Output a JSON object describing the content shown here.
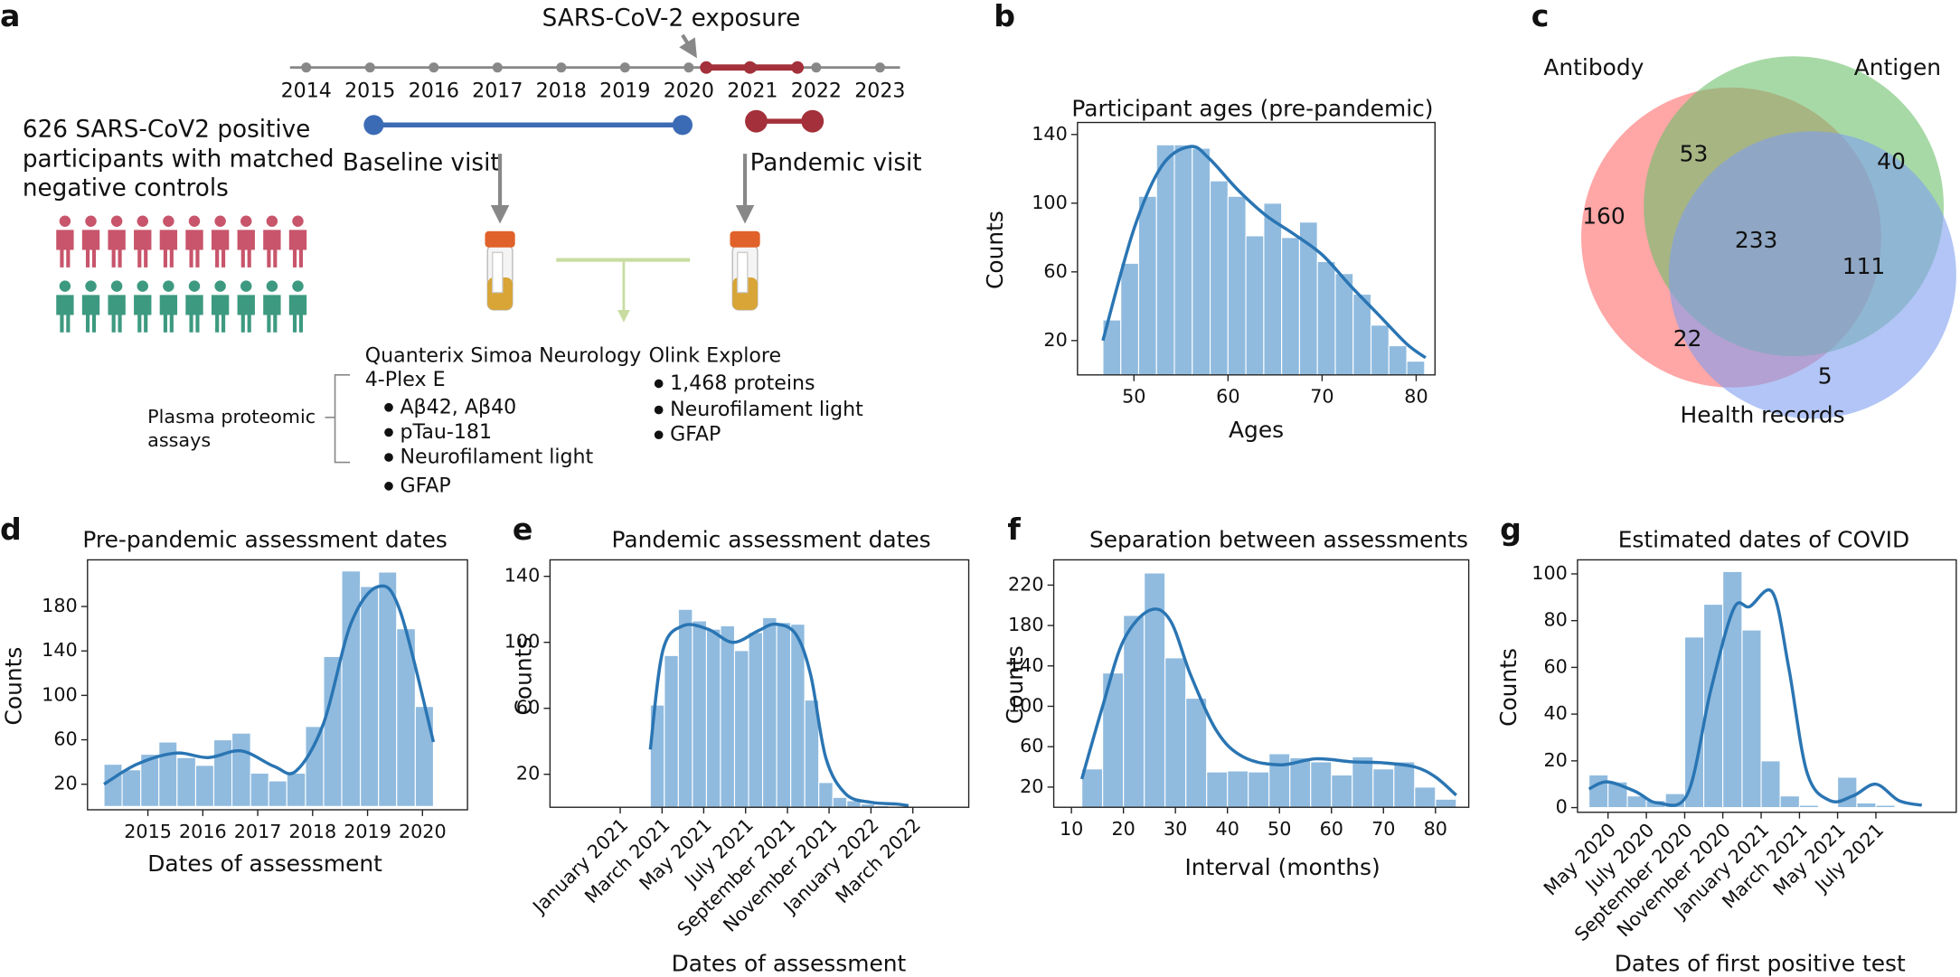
{
  "panel_labels": [
    "a",
    "b",
    "c",
    "d",
    "e",
    "f",
    "g"
  ],
  "diagram": {
    "exposure_label": "SARS-CoV-2 exposure",
    "years": [
      "2014",
      "2015",
      "2016",
      "2017",
      "2018",
      "2019",
      "2020",
      "2021",
      "2022",
      "2023"
    ],
    "cohort_text": [
      "626 SARS-CoV2 positive",
      "participants with matched",
      "negative controls"
    ],
    "baseline": "Baseline visit",
    "pandemic": "Pandemic visit",
    "assays_label": [
      "Plasma proteomic",
      "assays"
    ],
    "quanterix": {
      "title": [
        "Quanterix Simoa Neurology",
        "4-Plex E"
      ],
      "items": [
        "Aβ42, Aβ40",
        "pTau-181",
        "Neurofilament light",
        "GFAP"
      ]
    },
    "olink": {
      "title": "Olink Explore",
      "items": [
        "1,468 proteins",
        "Neurofilament light",
        "GFAP"
      ]
    }
  },
  "venn": {
    "sets": [
      "Antibody",
      "Antigen",
      "Health records"
    ],
    "colors": [
      "#ff6b6b",
      "#6cc06c",
      "#7f9ff0"
    ],
    "regions": [
      160,
      53,
      40,
      233,
      111,
      22,
      5
    ]
  },
  "chart_data": [
    {
      "type": "histogram",
      "title": "Participant ages (pre-pandemic)",
      "xlabel": "Ages",
      "ylabel": "Counts",
      "color": "#90bbdf",
      "line_color": "#2a75b3",
      "bins": [
        46.7,
        48.6,
        50.5,
        52.4,
        54.3,
        56.2,
        58.1,
        60.0,
        61.9,
        63.8,
        65.7,
        67.6,
        69.5,
        71.4,
        73.3,
        75.2,
        77.1,
        79.0,
        80.9
      ],
      "counts": [
        32,
        65,
        104,
        134,
        134,
        132,
        113,
        104,
        81,
        100,
        80,
        89,
        66,
        59,
        47,
        29,
        17,
        8
      ],
      "kde": {
        "x": [
          46.7,
          50,
          53,
          56,
          58,
          61,
          64,
          67,
          70,
          73,
          76,
          79,
          81
        ],
        "values": [
          20,
          85,
          122,
          133,
          126,
          108,
          93,
          82,
          70,
          52,
          35,
          18,
          10
        ]
      },
      "xlim": [
        44,
        82
      ],
      "ylim": [
        0,
        147
      ],
      "xticks": [
        50,
        60,
        70,
        80
      ],
      "yticks": [
        20,
        60,
        100,
        140
      ]
    },
    {
      "type": "histogram",
      "title": "Pre-pandemic assessment dates",
      "xlabel": "Dates of assessment",
      "ylabel": "Counts",
      "color": "#90bbdf",
      "line_color": "#2a75b3",
      "bins": [
        2014.2,
        2014.53,
        2014.87,
        2015.2,
        2015.53,
        2015.87,
        2016.2,
        2016.53,
        2016.87,
        2017.2,
        2017.53,
        2017.87,
        2018.2,
        2018.53,
        2018.87,
        2019.2,
        2019.53,
        2019.87,
        2020.2
      ],
      "counts": [
        38,
        33,
        47,
        58,
        44,
        37,
        60,
        66,
        30,
        23,
        30,
        72,
        135,
        212,
        198,
        211,
        160,
        90
      ],
      "kde": {
        "x": [
          2014.2,
          2014.8,
          2015.5,
          2016.1,
          2016.7,
          2017.3,
          2017.7,
          2018.2,
          2018.7,
          2019.2,
          2019.6,
          2020.2
        ],
        "values": [
          20,
          38,
          48,
          44,
          50,
          36,
          32,
          75,
          165,
          198,
          175,
          58
        ]
      },
      "xlim": [
        2013.9,
        2020.82
      ],
      "ylim": [
        -3,
        222
      ],
      "xticks": [
        2015,
        2016,
        2017,
        2018,
        2019,
        2020
      ],
      "yticks": [
        20,
        60,
        100,
        140,
        180
      ]
    },
    {
      "type": "histogram",
      "title": "Pandemic assessment dates",
      "xlabel": "Dates of assessment",
      "ylabel": "Counts",
      "color": "#90bbdf",
      "line_color": "#2a75b3",
      "bins": [
        2021.12,
        2021.176,
        2021.232,
        2021.288,
        2021.344,
        2021.4,
        2021.456,
        2021.512,
        2021.568,
        2021.624,
        2021.68,
        2021.736,
        2021.792,
        2021.848,
        2021.904,
        2021.96,
        2022.016,
        2022.072
      ],
      "counts": [
        62,
        92,
        120,
        113,
        108,
        110,
        95,
        106,
        115,
        112,
        111,
        65,
        15,
        6,
        4,
        2,
        1
      ],
      "kde": {
        "x": [
          2021.12,
          2021.17,
          2021.25,
          2021.35,
          2021.45,
          2021.55,
          2021.62,
          2021.7,
          2021.76,
          2021.82,
          2021.9,
          2022.0,
          2022.1,
          2022.15
        ],
        "values": [
          35,
          95,
          110,
          108,
          100,
          107,
          111,
          105,
          80,
          30,
          8,
          3,
          2,
          1
        ]
      },
      "xlim": [
        2020.72,
        2022.39
      ],
      "ylim": [
        0,
        150
      ],
      "xticks": [
        {
          "value": 2021.0,
          "label": "January 2021"
        },
        {
          "value": 2021.167,
          "label": "March 2021"
        },
        {
          "value": 2021.333,
          "label": "May 2021"
        },
        {
          "value": 2021.5,
          "label": "July 2021"
        },
        {
          "value": 2021.667,
          "label": "September 2021"
        },
        {
          "value": 2021.833,
          "label": "November 2021"
        },
        {
          "value": 2022.0,
          "label": "January 2022"
        },
        {
          "value": 2022.167,
          "label": "March 2022"
        }
      ],
      "yticks": [
        20,
        60,
        100,
        140
      ]
    },
    {
      "type": "histogram",
      "title": "Separation between assessments",
      "xlabel": "Interval (months)",
      "ylabel": "Counts",
      "color": "#90bbdf",
      "line_color": "#2a75b3",
      "bins": [
        12,
        16,
        20,
        24,
        28,
        32,
        36,
        40,
        44,
        48,
        52,
        56,
        60,
        64,
        68,
        72,
        76,
        80,
        84
      ],
      "counts": [
        38,
        133,
        190,
        232,
        148,
        108,
        35,
        36,
        35,
        53,
        49,
        45,
        32,
        50,
        38,
        45,
        20,
        8
      ],
      "kde": {
        "x": [
          12,
          16,
          20,
          25,
          29,
          33,
          38,
          43,
          50,
          57,
          64,
          70,
          76,
          80,
          84
        ],
        "values": [
          28,
          100,
          165,
          195,
          185,
          130,
          75,
          50,
          42,
          48,
          45,
          44,
          40,
          30,
          12
        ]
      },
      "xlim": [
        6.6,
        86.4
      ],
      "ylim": [
        0,
        245
      ],
      "xticks": [
        10,
        20,
        30,
        40,
        50,
        60,
        70,
        80
      ],
      "yticks": [
        20,
        60,
        100,
        140,
        180,
        220
      ]
    },
    {
      "type": "histogram",
      "title": "Estimated dates of COVID",
      "xlabel": "Dates of first positive test",
      "ylabel": "Counts",
      "color": "#90bbdf",
      "line_color": "#2a75b3",
      "bins": [
        2020.25,
        2020.333,
        2020.417,
        2020.5,
        2020.583,
        2020.667,
        2020.75,
        2020.833,
        2020.917,
        2021.0,
        2021.083,
        2021.167,
        2021.25,
        2021.333,
        2021.417,
        2021.5,
        2021.583
      ],
      "counts": [
        14,
        11,
        5,
        3,
        6,
        73,
        87,
        101,
        76,
        20,
        5,
        1,
        0,
        13,
        2,
        1
      ],
      "kde": {
        "x": [
          2020.25,
          2020.33,
          2020.45,
          2020.55,
          2020.68,
          2020.78,
          2020.88,
          2020.95,
          2021.05,
          2021.12,
          2021.2,
          2021.3,
          2021.4,
          2021.5,
          2021.6,
          2021.7
        ],
        "values": [
          8,
          11,
          7,
          2,
          6,
          50,
          85,
          86,
          92,
          60,
          15,
          3,
          5,
          10,
          3,
          1
        ]
      },
      "xlim": [
        2020.2,
        2021.85
      ],
      "ylim": [
        -2,
        106
      ],
      "xticks": [
        {
          "value": 2020.333,
          "label": "May 2020"
        },
        {
          "value": 2020.5,
          "label": "July 2020"
        },
        {
          "value": 2020.667,
          "label": "September 2020"
        },
        {
          "value": 2020.833,
          "label": "November 2020"
        },
        {
          "value": 2021.0,
          "label": "January 2021"
        },
        {
          "value": 2021.167,
          "label": "March 2021"
        },
        {
          "value": 2021.333,
          "label": "May 2021"
        },
        {
          "value": 2021.5,
          "label": "July 2021"
        }
      ],
      "yticks": [
        0,
        20,
        40,
        60,
        80,
        100
      ]
    }
  ]
}
